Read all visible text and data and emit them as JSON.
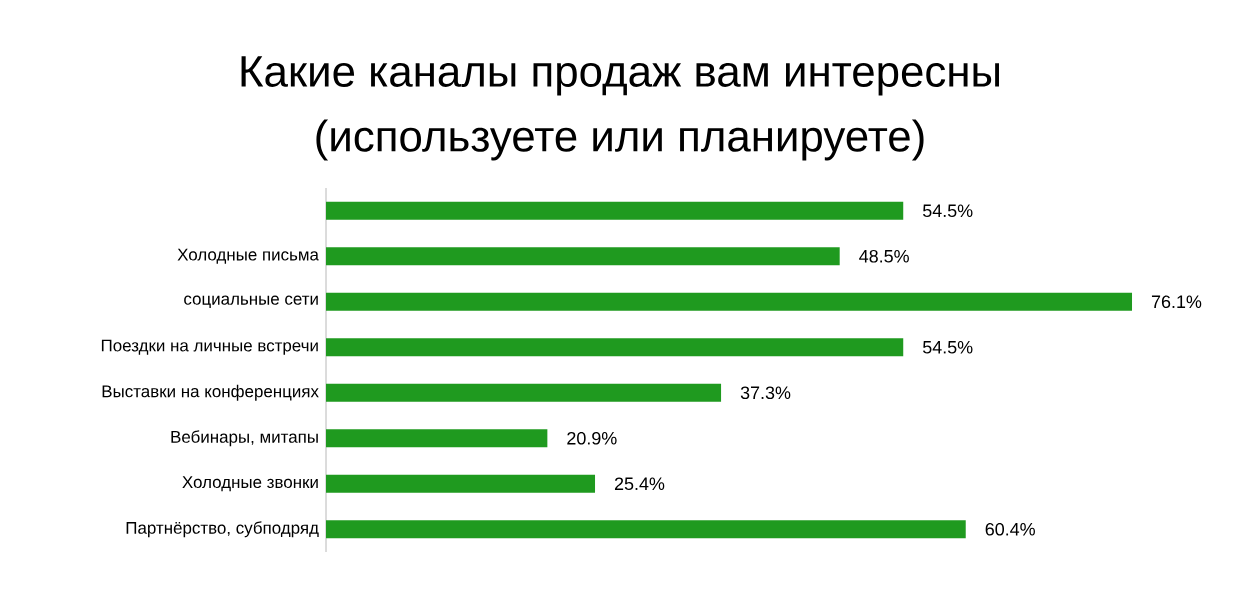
{
  "chart_data": {
    "type": "bar",
    "orientation": "horizontal",
    "title": "Какие каналы продаж вам интересны",
    "subtitle": "(используете или планируете)",
    "categories": [
      null,
      "Холодные письма",
      "социальные сети",
      "Поездки на личные встречи",
      "Выставки на конференциях",
      "Вебинары, митапы",
      "Холодные звонки",
      "Партнёрство, субподряд"
    ],
    "values": [
      54.5,
      48.5,
      76.1,
      54.5,
      37.3,
      20.9,
      25.4,
      60.4
    ],
    "value_labels": [
      "54.5%",
      "48.5%",
      "76.1%",
      "54.5%",
      "37.3%",
      "20.9%",
      "25.4%",
      "60.4%"
    ],
    "color": "#1f9a1f"
  }
}
